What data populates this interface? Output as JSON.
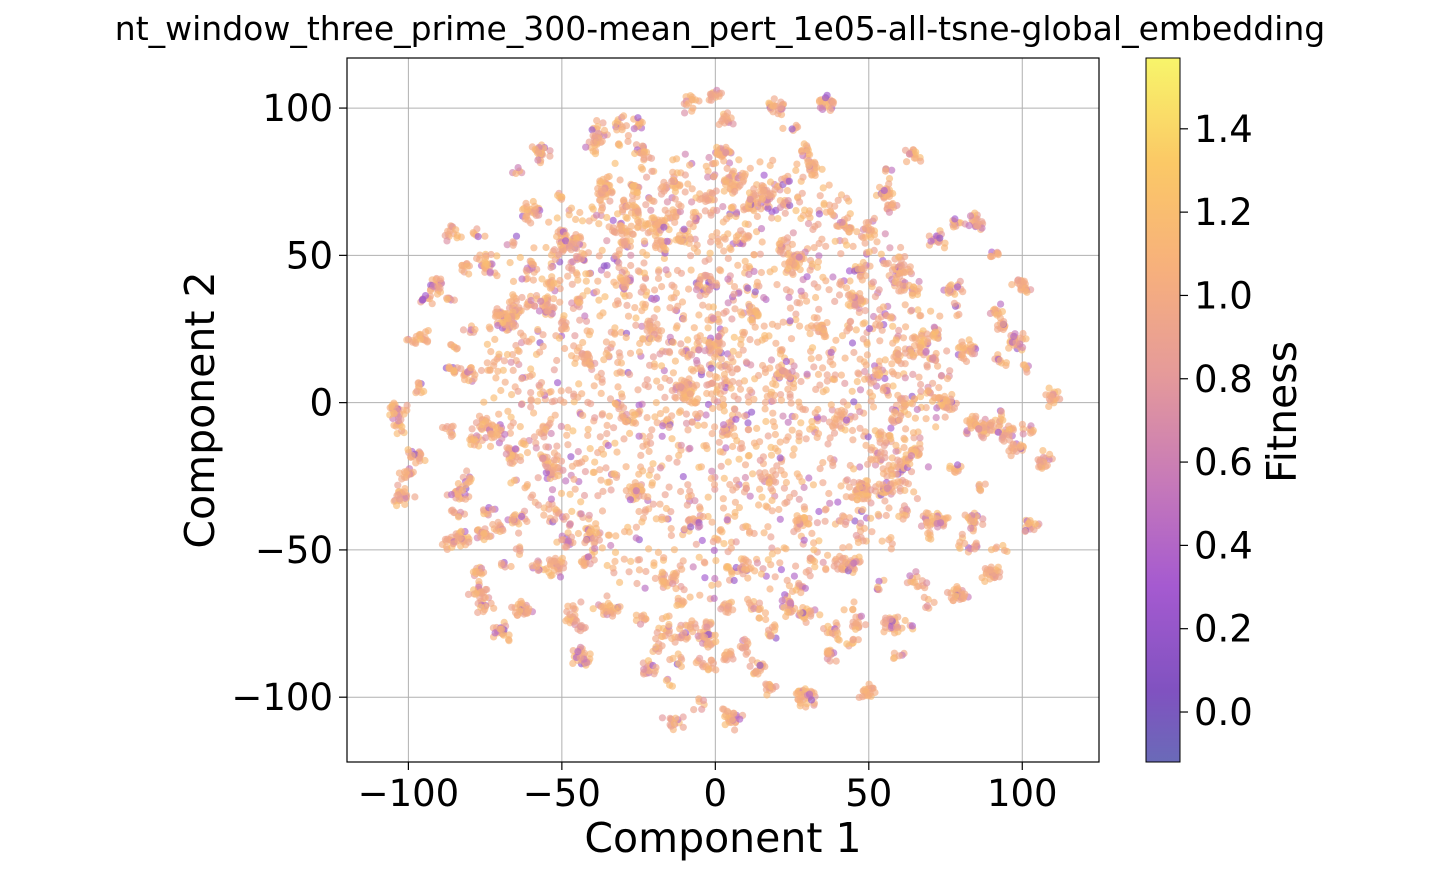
{
  "chart_data": {
    "type": "scatter",
    "title": "nt_window_three_prime_300-mean_pert_1e05-all-tsne-global_embedding",
    "xlabel": "Component 1",
    "ylabel": "Component 2",
    "xlim": [
      -120,
      125
    ],
    "ylim": [
      -122,
      117
    ],
    "grid": true,
    "x_ticks": [
      -100,
      -50,
      0,
      50,
      100
    ],
    "y_ticks": [
      -100,
      -50,
      0,
      50,
      100
    ],
    "x_tick_labels": [
      "−100",
      "−50",
      "0",
      "50",
      "100"
    ],
    "y_tick_labels": [
      "−100",
      "−50",
      "0",
      "50",
      "100"
    ],
    "colorbar": {
      "label": "Fitness",
      "range": [
        -0.12,
        1.57
      ],
      "colormap": "plasma",
      "ticks": [
        0.0,
        0.2,
        0.4,
        0.6,
        0.8,
        1.0,
        1.2,
        1.4
      ],
      "tick_labels": [
        "0.0",
        "0.2",
        "0.4",
        "0.6",
        "0.8",
        "1.0",
        "1.2",
        "1.4"
      ]
    },
    "point_alpha": 0.65,
    "description_shape": "roughly circular cloud of many small clusters spanning about -108 to 112 on Component 1 and -110 to 104 on Component 2; dense center, most points with fitness near 0.9-1.2",
    "clusters": [
      {
        "x": -104,
        "y": -2
      },
      {
        "x": -102,
        "y": -32
      },
      {
        "x": -98,
        "y": -18
      },
      {
        "x": -95,
        "y": 22
      },
      {
        "x": -91,
        "y": 40
      },
      {
        "x": -86,
        "y": 58
      },
      {
        "x": -84,
        "y": -30
      },
      {
        "x": -83,
        "y": -46
      },
      {
        "x": -80,
        "y": 10
      },
      {
        "x": -77,
        "y": -64
      },
      {
        "x": -74,
        "y": 47
      },
      {
        "x": -72,
        "y": -10
      },
      {
        "x": -70,
        "y": -78
      },
      {
        "x": -68,
        "y": 28
      },
      {
        "x": -65,
        "y": -40
      },
      {
        "x": -63,
        "y": -70
      },
      {
        "x": -60,
        "y": 65
      },
      {
        "x": -57,
        "y": 85
      },
      {
        "x": -55,
        "y": 33
      },
      {
        "x": -54,
        "y": -20
      },
      {
        "x": -52,
        "y": -55
      },
      {
        "x": -46,
        "y": 55
      },
      {
        "x": -44,
        "y": -87
      },
      {
        "x": -42,
        "y": 15
      },
      {
        "x": -40,
        "y": -45
      },
      {
        "x": -38,
        "y": 90
      },
      {
        "x": -36,
        "y": 72
      },
      {
        "x": -34,
        "y": -70
      },
      {
        "x": -30,
        "y": 40
      },
      {
        "x": -28,
        "y": -5
      },
      {
        "x": -26,
        "y": -30
      },
      {
        "x": -24,
        "y": 85
      },
      {
        "x": -22,
        "y": -90
      },
      {
        "x": -20,
        "y": 25
      },
      {
        "x": -18,
        "y": 60
      },
      {
        "x": -16,
        "y": -60
      },
      {
        "x": -14,
        "y": -108
      },
      {
        "x": -12,
        "y": 75
      },
      {
        "x": -10,
        "y": 5
      },
      {
        "x": -8,
        "y": 101
      },
      {
        "x": -6,
        "y": -40
      },
      {
        "x": -4,
        "y": 40
      },
      {
        "x": -2,
        "y": -80
      },
      {
        "x": 0,
        "y": 20
      },
      {
        "x": 2,
        "y": 85
      },
      {
        "x": 4,
        "y": -10
      },
      {
        "x": 5,
        "y": -107
      },
      {
        "x": 8,
        "y": 55
      },
      {
        "x": 10,
        "y": -55
      },
      {
        "x": 12,
        "y": 30
      },
      {
        "x": 14,
        "y": -90
      },
      {
        "x": 16,
        "y": 70
      },
      {
        "x": 18,
        "y": -25
      },
      {
        "x": 20,
        "y": 100
      },
      {
        "x": 22,
        "y": 10
      },
      {
        "x": 24,
        "y": -70
      },
      {
        "x": 26,
        "y": 48
      },
      {
        "x": 28,
        "y": -40
      },
      {
        "x": 30,
        "y": -100
      },
      {
        "x": 32,
        "y": 80
      },
      {
        "x": 34,
        "y": 25
      },
      {
        "x": 36,
        "y": 102
      },
      {
        "x": 38,
        "y": -85
      },
      {
        "x": 40,
        "y": -5
      },
      {
        "x": 42,
        "y": 60
      },
      {
        "x": 44,
        "y": -55
      },
      {
        "x": 46,
        "y": 35
      },
      {
        "x": 48,
        "y": -30
      },
      {
        "x": 50,
        "y": -98
      },
      {
        "x": 52,
        "y": 10
      },
      {
        "x": 55,
        "y": 72
      },
      {
        "x": 57,
        "y": -75
      },
      {
        "x": 60,
        "y": 45
      },
      {
        "x": 62,
        "y": -20
      },
      {
        "x": 64,
        "y": 84
      },
      {
        "x": 66,
        "y": -60
      },
      {
        "x": 68,
        "y": 20
      },
      {
        "x": 70,
        "y": -40
      },
      {
        "x": 72,
        "y": 55
      },
      {
        "x": 75,
        "y": 0
      },
      {
        "x": 77,
        "y": 38
      },
      {
        "x": 79,
        "y": -65
      },
      {
        "x": 82,
        "y": 18
      },
      {
        "x": 84,
        "y": -40
      },
      {
        "x": 85,
        "y": 62
      },
      {
        "x": 88,
        "y": -10
      },
      {
        "x": 90,
        "y": -58
      },
      {
        "x": 95,
        "y": -10
      },
      {
        "x": 98,
        "y": 20
      },
      {
        "x": 100,
        "y": 40
      },
      {
        "x": 103,
        "y": -42
      },
      {
        "x": 107,
        "y": -20
      },
      {
        "x": 110,
        "y": 2
      }
    ]
  }
}
